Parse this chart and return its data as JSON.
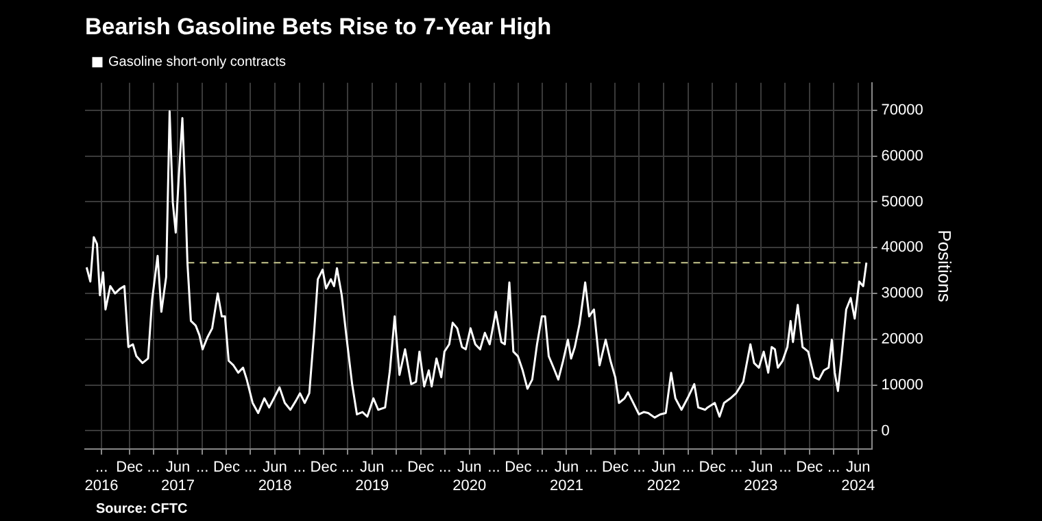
{
  "chart_data": {
    "type": "line",
    "title": "Bearish Gasoline Bets Rise to 7-Year High",
    "ylabel": "Positions",
    "annotations": [
      "Source: CFTC"
    ],
    "legend": "top left",
    "grid": true,
    "marker": "none",
    "xlim": [
      "2016-07-01",
      "2024-08-05"
    ],
    "xticks": [
      {
        "value": "2016-09-01",
        "label": "...\n2016"
      },
      {
        "value": "2016-12-15",
        "label": "Dec"
      },
      {
        "value": "2017-03-15",
        "label": "..."
      },
      {
        "value": "2017-06-15",
        "label": "Jun\n2017"
      },
      {
        "value": "2017-09-15",
        "label": "..."
      },
      {
        "value": "2017-12-15",
        "label": "Dec"
      },
      {
        "value": "2018-03-15",
        "label": "..."
      },
      {
        "value": "2018-06-15",
        "label": "Jun\n2018"
      },
      {
        "value": "2018-09-15",
        "label": "..."
      },
      {
        "value": "2018-12-15",
        "label": "Dec"
      },
      {
        "value": "2019-03-15",
        "label": "..."
      },
      {
        "value": "2019-06-15",
        "label": "Jun\n2019"
      },
      {
        "value": "2019-09-15",
        "label": "..."
      },
      {
        "value": "2019-12-15",
        "label": "Dec"
      },
      {
        "value": "2020-03-15",
        "label": "..."
      },
      {
        "value": "2020-06-15",
        "label": "Jun\n2020"
      },
      {
        "value": "2020-09-15",
        "label": "..."
      },
      {
        "value": "2020-12-15",
        "label": "Dec"
      },
      {
        "value": "2021-03-15",
        "label": "..."
      },
      {
        "value": "2021-06-15",
        "label": "Jun\n2021"
      },
      {
        "value": "2021-09-15",
        "label": "..."
      },
      {
        "value": "2021-12-15",
        "label": "Dec"
      },
      {
        "value": "2022-03-15",
        "label": "..."
      },
      {
        "value": "2022-06-15",
        "label": "Jun\n2022"
      },
      {
        "value": "2022-09-15",
        "label": "..."
      },
      {
        "value": "2022-12-15",
        "label": "Dec"
      },
      {
        "value": "2023-03-15",
        "label": "..."
      },
      {
        "value": "2023-06-15",
        "label": "Jun\n2023"
      },
      {
        "value": "2023-09-15",
        "label": "..."
      },
      {
        "value": "2023-12-15",
        "label": "Dec"
      },
      {
        "value": "2024-03-15",
        "label": "..."
      },
      {
        "value": "2024-06-15",
        "label": "Jun\n2024"
      }
    ],
    "ylim": [
      -4000,
      76000
    ],
    "yticks": [
      0,
      10000,
      20000,
      30000,
      40000,
      50000,
      60000,
      70000
    ],
    "series": [
      {
        "name": "Gasoline short-only contracts",
        "color": "#ffffff",
        "x": [
          "2016-07-07",
          "2016-07-21",
          "2016-08-03",
          "2016-08-15",
          "2016-08-26",
          "2016-09-07",
          "2016-09-16",
          "2016-10-04",
          "2016-10-22",
          "2016-11-09",
          "2016-11-26",
          "2016-12-11",
          "2016-12-28",
          "2017-01-10",
          "2017-02-02",
          "2017-02-23",
          "2017-03-10",
          "2017-03-31",
          "2017-04-14",
          "2017-05-02",
          "2017-05-15",
          "2017-05-27",
          "2017-06-07",
          "2017-06-19",
          "2017-07-02",
          "2017-07-12",
          "2017-07-21",
          "2017-08-03",
          "2017-08-21",
          "2017-09-04",
          "2017-09-16",
          "2017-10-04",
          "2017-10-22",
          "2017-11-12",
          "2017-11-27",
          "2017-12-09",
          "2017-12-23",
          "2018-01-10",
          "2018-01-28",
          "2018-02-15",
          "2018-03-01",
          "2018-03-23",
          "2018-04-13",
          "2018-05-06",
          "2018-05-24",
          "2018-06-11",
          "2018-07-02",
          "2018-07-22",
          "2018-08-12",
          "2018-09-02",
          "2018-09-17",
          "2018-10-05",
          "2018-10-22",
          "2018-11-09",
          "2018-11-23",
          "2018-12-11",
          "2018-12-24",
          "2019-01-11",
          "2019-01-23",
          "2019-02-03",
          "2019-02-21",
          "2019-03-10",
          "2019-04-01",
          "2019-04-19",
          "2019-05-10",
          "2019-05-28",
          "2019-06-20",
          "2019-07-08",
          "2019-08-03",
          "2019-08-21",
          "2019-09-08",
          "2019-09-26",
          "2019-10-17",
          "2019-11-09",
          "2019-11-27",
          "2019-12-10",
          "2019-12-28",
          "2020-01-14",
          "2020-01-25",
          "2020-02-12",
          "2020-03-01",
          "2020-03-13",
          "2020-03-31",
          "2020-04-13",
          "2020-04-30",
          "2020-05-18",
          "2020-06-01",
          "2020-06-19",
          "2020-07-07",
          "2020-07-25",
          "2020-08-12",
          "2020-08-30",
          "2020-09-22",
          "2020-10-13",
          "2020-10-26",
          "2020-11-12",
          "2020-11-27",
          "2020-12-14",
          "2021-01-01",
          "2021-01-19",
          "2021-02-06",
          "2021-02-24",
          "2021-03-14",
          "2021-03-26",
          "2021-04-09",
          "2021-04-27",
          "2021-05-15",
          "2021-06-02",
          "2021-06-20",
          "2021-07-02",
          "2021-07-16",
          "2021-08-03",
          "2021-08-24",
          "2021-09-08",
          "2021-09-26",
          "2021-10-17",
          "2021-11-09",
          "2021-11-27",
          "2021-12-15",
          "2021-12-29",
          "2022-01-19",
          "2022-02-01",
          "2022-02-19",
          "2022-03-14",
          "2022-04-01",
          "2022-04-18",
          "2022-05-12",
          "2022-06-02",
          "2022-06-23",
          "2022-07-13",
          "2022-07-29",
          "2022-08-21",
          "2022-09-17",
          "2022-10-08",
          "2022-10-23",
          "2022-11-18",
          "2022-11-27",
          "2022-12-11",
          "2022-12-24",
          "2023-01-11",
          "2023-01-28",
          "2023-02-21",
          "2023-03-14",
          "2023-04-10",
          "2023-05-07",
          "2023-05-21",
          "2023-06-08",
          "2023-06-26",
          "2023-07-13",
          "2023-07-26",
          "2023-08-07",
          "2023-08-18",
          "2023-09-05",
          "2023-09-23",
          "2023-10-05",
          "2023-10-14",
          "2023-11-01",
          "2023-11-19",
          "2023-12-10",
          "2024-01-02",
          "2024-01-20",
          "2024-02-07",
          "2024-02-25",
          "2024-03-08",
          "2024-03-19",
          "2024-03-31",
          "2024-04-13",
          "2024-05-01",
          "2024-05-18",
          "2024-06-02",
          "2024-06-19",
          "2024-07-04",
          "2024-07-16"
        ],
        "values": [
          35700,
          32600,
          42300,
          40800,
          29600,
          34600,
          26500,
          31600,
          30000,
          31000,
          31600,
          18300,
          18900,
          16300,
          14800,
          15800,
          28500,
          38200,
          26000,
          33600,
          69800,
          49900,
          43300,
          56000,
          68300,
          53000,
          36700,
          24000,
          23000,
          20900,
          17800,
          20400,
          22400,
          30000,
          25000,
          25000,
          15300,
          14300,
          12700,
          13800,
          11200,
          6100,
          3900,
          7100,
          5100,
          7100,
          9500,
          6100,
          4600,
          6600,
          8200,
          6100,
          8200,
          21400,
          33100,
          35200,
          31100,
          33100,
          31600,
          35500,
          29600,
          20900,
          10200,
          3600,
          4100,
          3100,
          7100,
          4600,
          5100,
          13200,
          25000,
          12200,
          17800,
          10200,
          10700,
          17300,
          9700,
          13200,
          9700,
          15800,
          11700,
          17300,
          18900,
          23600,
          22400,
          18300,
          17800,
          22400,
          18900,
          17800,
          21400,
          18900,
          26000,
          19400,
          18900,
          32400,
          17300,
          16300,
          13200,
          9200,
          11200,
          18900,
          25000,
          25000,
          16300,
          13800,
          11200,
          15300,
          19900,
          15800,
          18300,
          23400,
          32400,
          25000,
          26500,
          14300,
          19900,
          15300,
          11700,
          6100,
          7100,
          8400,
          6300,
          3600,
          4100,
          3900,
          2900,
          3600,
          3900,
          12700,
          7100,
          4600,
          7600,
          10200,
          5100,
          4600,
          5100,
          5600,
          6100,
          3100,
          6100,
          7100,
          8200,
          10700,
          18900,
          14800,
          13800,
          17300,
          12700,
          18300,
          17800,
          13800,
          15300,
          18300,
          24000,
          19400,
          27500,
          18300,
          17300,
          11700,
          11200,
          13200,
          13800,
          19900,
          12700,
          8700,
          15800,
          26500,
          29000,
          24500,
          32600,
          31600,
          36700
        ]
      },
      {
        "color": "#c9c98f",
        "line_style": "dashed",
        "x": [
          "2017-07-21",
          "2024-07-16"
        ],
        "values": [
          36700,
          36700
        ]
      }
    ]
  }
}
